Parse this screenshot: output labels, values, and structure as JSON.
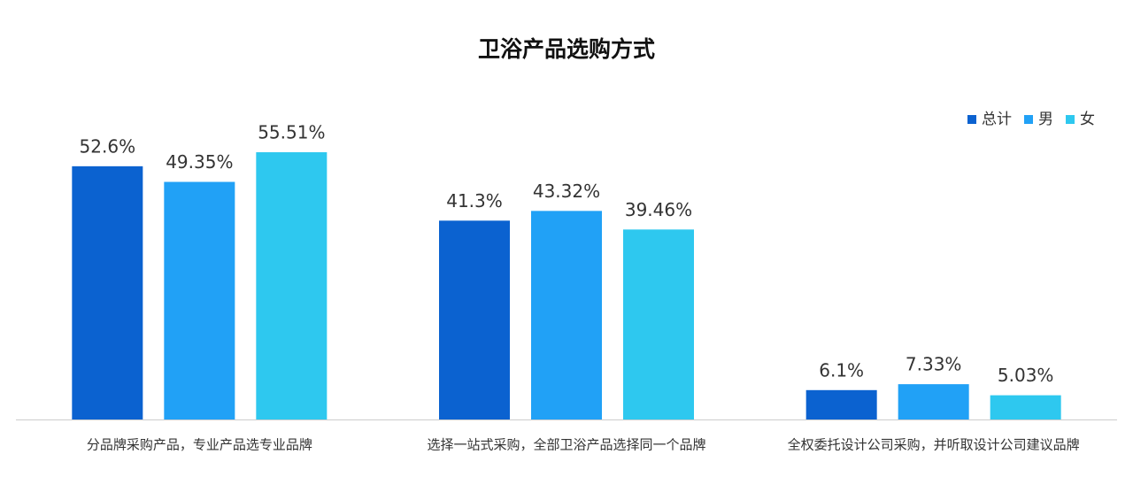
{
  "chart_data": {
    "type": "bar",
    "title": "卫浴产品选购方式",
    "categories": [
      "分品牌采购产品，专业产品选专业品牌",
      "选择一站式采购，全部卫浴产品选择同一个品牌",
      "全权委托设计公司采购，并听取设计公司建议品牌"
    ],
    "series": [
      {
        "name": "总计",
        "color": "#0b62d0",
        "values": [
          52.6,
          41.3,
          6.1
        ],
        "value_labels": [
          "52.6%",
          "41.3%",
          "6.1%"
        ]
      },
      {
        "name": "男",
        "color": "#21a1f6",
        "values": [
          49.35,
          43.32,
          7.33
        ],
        "value_labels": [
          "49.35%",
          "43.32%",
          "7.33%"
        ]
      },
      {
        "name": "女",
        "color": "#2ec8ef",
        "values": [
          55.51,
          39.46,
          5.03
        ],
        "value_labels": [
          "55.51%",
          "39.46%",
          "5.03%"
        ]
      }
    ],
    "legend": "top-right"
  }
}
